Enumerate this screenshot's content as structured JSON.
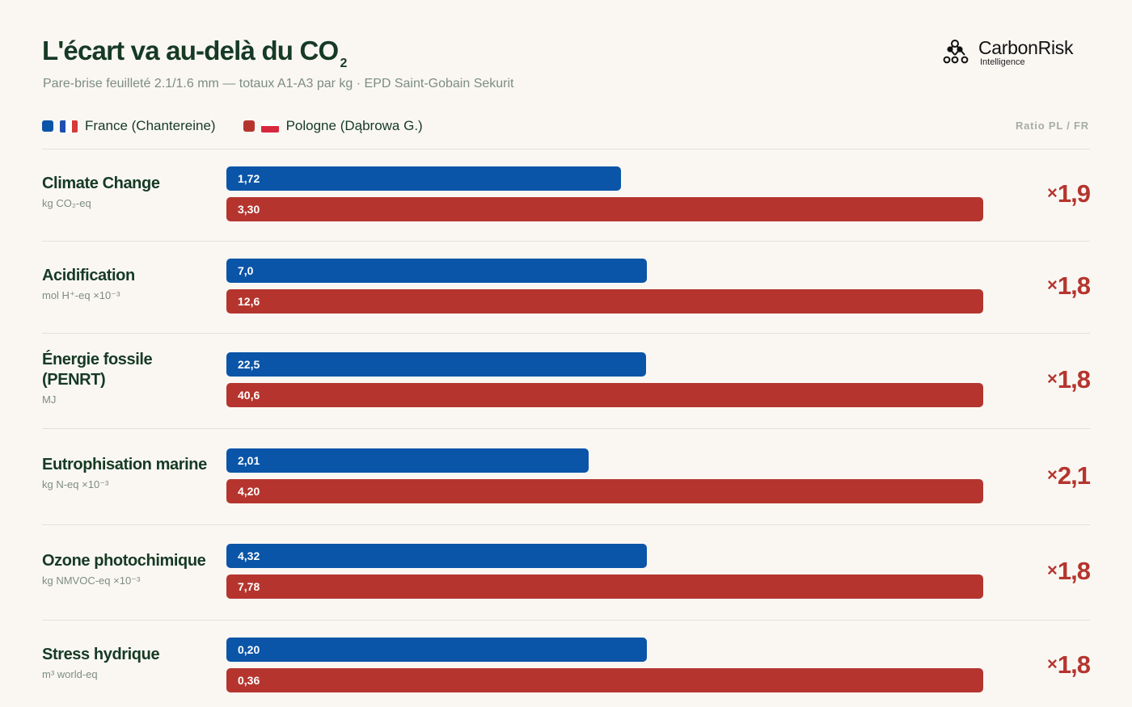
{
  "header": {
    "title": "L'écart va au-delà du CO",
    "title_sub": "2",
    "subtitle": "Pare-brise feuilleté 2.1/1.6 mm — totaux A1-A3 par kg · EPD Saint-Gobain Sekurit"
  },
  "brand": {
    "name": "CarbonRisk",
    "tagline": "Intelligence",
    "icon": "molecule-icon"
  },
  "legend": {
    "ratio_header": "Ratio PL / FR"
  },
  "colors": {
    "france": "#0a55a8",
    "poland": "#b5352e",
    "ratio": "#b5352e"
  },
  "chart_data": {
    "type": "bar",
    "orientation": "horizontal",
    "series": [
      {
        "name": "France (Chantereine)",
        "key": "fr"
      },
      {
        "name": "Pologne (Dąbrowa G.)",
        "key": "pl"
      }
    ],
    "rows": [
      {
        "name": "Climate Change",
        "unit": "kg CO₂-eq",
        "fr": 1.72,
        "pl": 3.3,
        "fr_label": "1,72",
        "pl_label": "3,30",
        "ratio": "1,9"
      },
      {
        "name": "Acidification",
        "unit": "mol H⁺-eq ×10⁻³",
        "fr": 7.0,
        "pl": 12.6,
        "fr_label": "7,0",
        "pl_label": "12,6",
        "ratio": "1,8"
      },
      {
        "name": "Énergie fossile (PENRT)",
        "unit": "MJ",
        "fr": 22.5,
        "pl": 40.6,
        "fr_label": "22,5",
        "pl_label": "40,6",
        "ratio": "1,8"
      },
      {
        "name": "Eutrophisation marine",
        "unit": "kg N-eq ×10⁻³",
        "fr": 2.01,
        "pl": 4.2,
        "fr_label": "2,01",
        "pl_label": "4,20",
        "ratio": "2,1"
      },
      {
        "name": "Ozone photochimique",
        "unit": "kg NMVOC-eq ×10⁻³",
        "fr": 4.32,
        "pl": 7.78,
        "fr_label": "4,32",
        "pl_label": "7,78",
        "ratio": "1,8"
      },
      {
        "name": "Stress hydrique",
        "unit": "m³ world-eq",
        "fr": 0.2,
        "pl": 0.36,
        "fr_label": "0,20",
        "pl_label": "0,36",
        "ratio": "1,8"
      }
    ]
  }
}
